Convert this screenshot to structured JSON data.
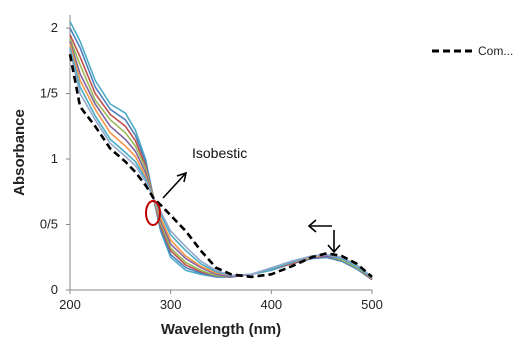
{
  "chart_data": {
    "type": "line",
    "xlabel": "Wavelength (nm)",
    "ylabel": "Absorbance",
    "xlim": [
      200,
      500
    ],
    "ylim": [
      0,
      2.1
    ],
    "x_ticks": [
      200,
      300,
      400,
      500
    ],
    "y_tick_values": [
      0,
      0.5,
      1,
      1.5,
      2
    ],
    "y_tick_labels": [
      "0",
      "0/5",
      "1",
      "1/5",
      "2"
    ],
    "grid": false,
    "legend": {
      "position": "top-right",
      "entries": [
        {
          "name": "Com...",
          "style": "dashed",
          "color": "#000000"
        }
      ]
    },
    "x": [
      200,
      210,
      225,
      240,
      255,
      265,
      275,
      283,
      290,
      300,
      315,
      330,
      345,
      360,
      380,
      400,
      420,
      440,
      455,
      470,
      485,
      500
    ],
    "series": [
      {
        "name": "Com...",
        "style": "dashed",
        "color": "#000000",
        "values": [
          1.8,
          1.4,
          1.25,
          1.08,
          0.98,
          0.9,
          0.8,
          0.7,
          0.65,
          0.57,
          0.45,
          0.3,
          0.17,
          0.12,
          0.1,
          0.12,
          0.18,
          0.25,
          0.28,
          0.26,
          0.2,
          0.1
        ]
      },
      {
        "color": "#4bacc6",
        "style": "solid",
        "values": [
          2.05,
          1.9,
          1.6,
          1.42,
          1.35,
          1.22,
          1.0,
          0.7,
          0.45,
          0.25,
          0.15,
          0.12,
          0.1,
          0.1,
          0.12,
          0.15,
          0.2,
          0.24,
          0.25,
          0.22,
          0.16,
          0.08
        ]
      },
      {
        "color": "#4f81bd",
        "style": "solid",
        "values": [
          2.0,
          1.85,
          1.55,
          1.38,
          1.3,
          1.18,
          0.98,
          0.7,
          0.47,
          0.27,
          0.17,
          0.13,
          0.1,
          0.1,
          0.12,
          0.16,
          0.2,
          0.24,
          0.25,
          0.22,
          0.16,
          0.08
        ]
      },
      {
        "color": "#c0504d",
        "style": "solid",
        "values": [
          1.95,
          1.78,
          1.5,
          1.34,
          1.25,
          1.14,
          0.95,
          0.7,
          0.49,
          0.3,
          0.19,
          0.14,
          0.11,
          0.1,
          0.12,
          0.16,
          0.2,
          0.25,
          0.26,
          0.23,
          0.17,
          0.08
        ]
      },
      {
        "color": "#9bbb59",
        "style": "solid",
        "values": [
          1.92,
          1.72,
          1.45,
          1.3,
          1.2,
          1.1,
          0.93,
          0.7,
          0.51,
          0.32,
          0.21,
          0.15,
          0.11,
          0.1,
          0.12,
          0.16,
          0.21,
          0.25,
          0.26,
          0.23,
          0.17,
          0.09
        ]
      },
      {
        "color": "#8064a2",
        "style": "solid",
        "values": [
          1.9,
          1.65,
          1.42,
          1.25,
          1.15,
          1.06,
          0.9,
          0.7,
          0.53,
          0.35,
          0.24,
          0.17,
          0.12,
          0.1,
          0.12,
          0.16,
          0.21,
          0.25,
          0.26,
          0.24,
          0.18,
          0.09
        ]
      },
      {
        "color": "#f79646",
        "style": "solid",
        "values": [
          1.88,
          1.6,
          1.38,
          1.2,
          1.1,
          1.02,
          0.87,
          0.7,
          0.55,
          0.38,
          0.26,
          0.18,
          0.13,
          0.11,
          0.12,
          0.16,
          0.21,
          0.25,
          0.27,
          0.24,
          0.18,
          0.09
        ]
      },
      {
        "color": "#4aacc5",
        "style": "solid",
        "values": [
          1.85,
          1.55,
          1.33,
          1.15,
          1.05,
          0.98,
          0.85,
          0.7,
          0.58,
          0.42,
          0.3,
          0.2,
          0.14,
          0.11,
          0.12,
          0.16,
          0.21,
          0.26,
          0.27,
          0.24,
          0.18,
          0.09
        ]
      },
      {
        "color": "#93a9cf",
        "style": "solid",
        "values": [
          1.83,
          1.5,
          1.3,
          1.12,
          1.02,
          0.95,
          0.83,
          0.7,
          0.6,
          0.45,
          0.33,
          0.22,
          0.15,
          0.11,
          0.12,
          0.17,
          0.22,
          0.26,
          0.27,
          0.25,
          0.19,
          0.1
        ]
      }
    ],
    "annotations": [
      {
        "text": "Isobestic",
        "type": "label"
      }
    ]
  }
}
